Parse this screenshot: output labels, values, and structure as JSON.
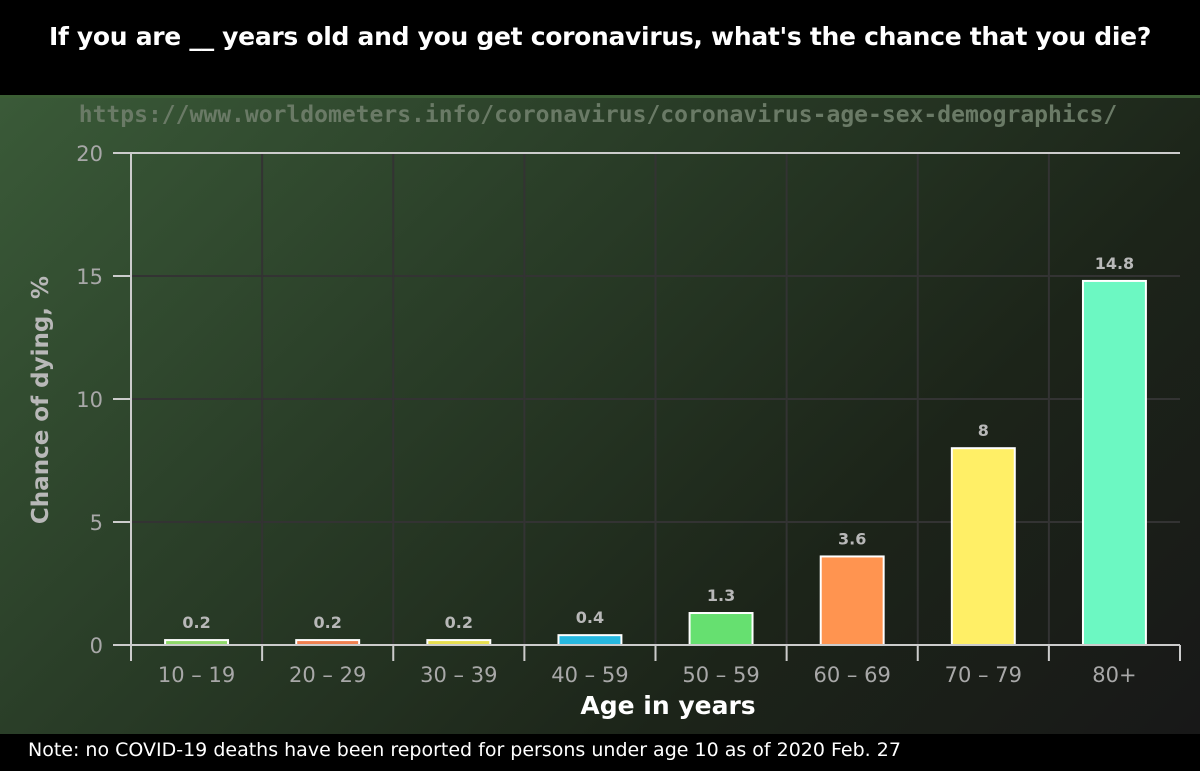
{
  "header": {
    "title": "If you are __ years old and you get coronavirus, what's the chance that you die?"
  },
  "source_url": "https://www.worldometers.info/coronavirus/coronavirus-age-sex-demographics/",
  "note": "Note: no COVID-19 deaths have been reported for persons under age 10 as of 2020 Feb. 27",
  "colors": {
    "title_bg": "#000000",
    "bar_stroke": "#ffffff",
    "grid": "#333333"
  },
  "chart_data": {
    "type": "bar",
    "xlabel": "Age in years",
    "ylabel": "Chance of dying, %",
    "ylim": [
      0,
      20
    ],
    "yticks": [
      0,
      5,
      10,
      15,
      20
    ],
    "grid": true,
    "categories": [
      "10 – 19",
      "20 – 29",
      "30 – 39",
      "40 – 59",
      "50 – 59",
      "60 – 69",
      "70 – 79",
      "80+"
    ],
    "values": [
      0.2,
      0.2,
      0.2,
      0.4,
      1.3,
      3.6,
      8,
      14.8
    ],
    "value_labels": [
      "0.2",
      "0.2",
      "0.2",
      "0.4",
      "1.3",
      "3.6",
      "8",
      "14.8"
    ],
    "bar_colors": [
      "#8fd96a",
      "#f08050",
      "#e8e050",
      "#26b8e0",
      "#66e070",
      "#ff9450",
      "#ffef66",
      "#6cf8c2"
    ]
  }
}
